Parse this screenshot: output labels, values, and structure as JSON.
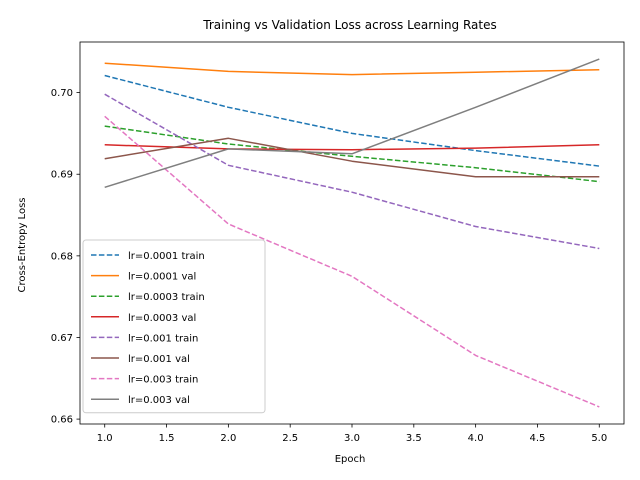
{
  "chart_data": {
    "type": "line",
    "title": "Training vs Validation Loss across Learning Rates",
    "xlabel": "Epoch",
    "ylabel": "Cross-Entropy Loss",
    "x": [
      1,
      2,
      3,
      4,
      5
    ],
    "xlim": [
      0.8,
      5.2
    ],
    "ylim": [
      0.6594,
      0.7062
    ],
    "xticks": [
      1.0,
      1.5,
      2.0,
      2.5,
      3.0,
      3.5,
      4.0,
      4.5,
      5.0
    ],
    "xtick_labels": [
      "1.0",
      "1.5",
      "2.0",
      "2.5",
      "3.0",
      "3.5",
      "4.0",
      "4.5",
      "5.0"
    ],
    "yticks": [
      0.66,
      0.67,
      0.68,
      0.69,
      0.7
    ],
    "ytick_labels": [
      "0.66",
      "0.67",
      "0.68",
      "0.69",
      "0.70"
    ],
    "grid": false,
    "legend_position": "lower-left",
    "series": [
      {
        "name": "lr=0.0001 train",
        "color": "#1f77b4",
        "dashed": true,
        "values": [
          0.7021,
          0.6982,
          0.695,
          0.6929,
          0.691
        ]
      },
      {
        "name": "lr=0.0001 val",
        "color": "#ff7f0e",
        "dashed": false,
        "values": [
          0.7036,
          0.7026,
          0.7022,
          0.7025,
          0.7028
        ]
      },
      {
        "name": "lr=0.0003 train",
        "color": "#2ca02c",
        "dashed": true,
        "values": [
          0.6959,
          0.6937,
          0.6922,
          0.6908,
          0.6891
        ]
      },
      {
        "name": "lr=0.0003 val",
        "color": "#d62728",
        "dashed": false,
        "values": [
          0.6936,
          0.6931,
          0.693,
          0.6932,
          0.6936
        ]
      },
      {
        "name": "lr=0.001 train",
        "color": "#9467bd",
        "dashed": true,
        "values": [
          0.6998,
          0.6911,
          0.6878,
          0.6836,
          0.6809
        ]
      },
      {
        "name": "lr=0.001 val",
        "color": "#8c564b",
        "dashed": false,
        "values": [
          0.6919,
          0.6944,
          0.6916,
          0.6897,
          0.6897
        ]
      },
      {
        "name": "lr=0.003 train",
        "color": "#e377c2",
        "dashed": true,
        "values": [
          0.6971,
          0.6839,
          0.6775,
          0.6678,
          0.6615
        ]
      },
      {
        "name": "lr=0.003 val",
        "color": "#7f7f7f",
        "dashed": false,
        "values": [
          0.6884,
          0.6931,
          0.6925,
          0.6982,
          0.7041
        ]
      }
    ]
  }
}
